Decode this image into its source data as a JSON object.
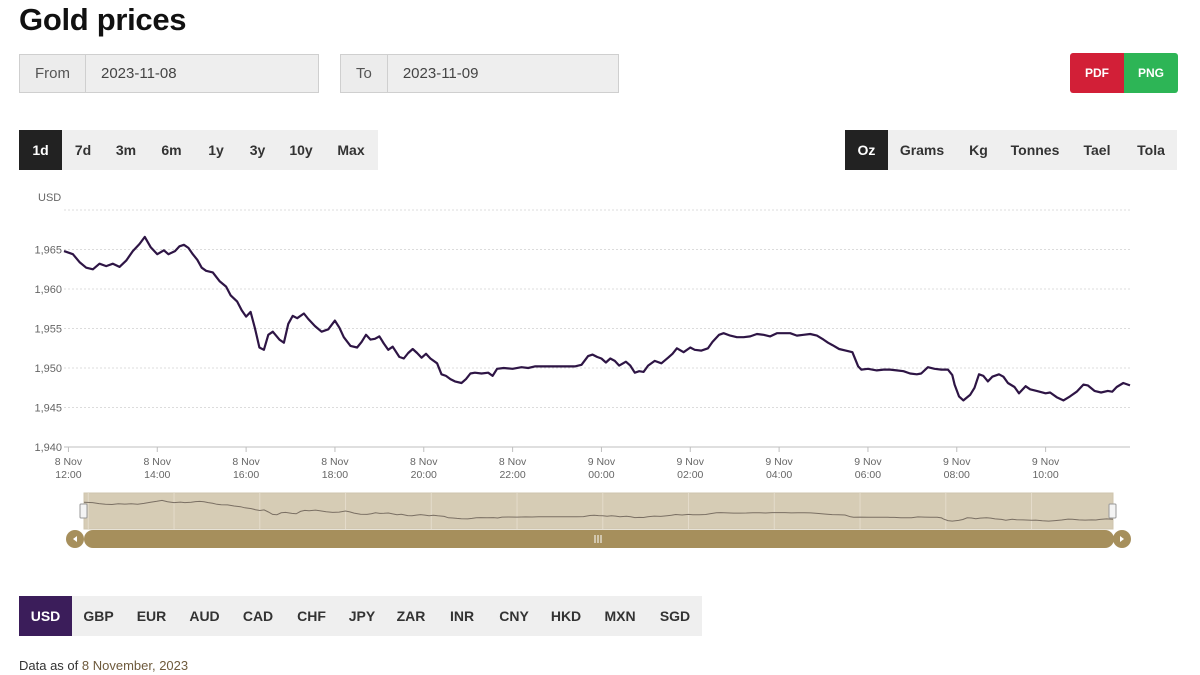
{
  "page": {
    "title": "Gold prices"
  },
  "filters": {
    "from_label": "From",
    "from_value": "2023-11-08",
    "to_label": "To",
    "to_value": "2023-11-09"
  },
  "export": {
    "pdf_label": "PDF",
    "png_label": "PNG",
    "pdf_color": "#d21f37",
    "png_color": "#2db556"
  },
  "range_options": [
    {
      "label": "1d",
      "active": true
    },
    {
      "label": "7d",
      "active": false
    },
    {
      "label": "3m",
      "active": false
    },
    {
      "label": "6m",
      "active": false
    },
    {
      "label": "1y",
      "active": false
    },
    {
      "label": "3y",
      "active": false
    },
    {
      "label": "10y",
      "active": false
    },
    {
      "label": "Max",
      "active": false
    }
  ],
  "unit_options": [
    {
      "label": "Oz",
      "active": true
    },
    {
      "label": "Grams",
      "active": false
    },
    {
      "label": "Kg",
      "active": false
    },
    {
      "label": "Tonnes",
      "active": false
    },
    {
      "label": "Tael",
      "active": false
    },
    {
      "label": "Tola",
      "active": false
    }
  ],
  "currency_options": [
    {
      "label": "USD",
      "active": true
    },
    {
      "label": "GBP",
      "active": false
    },
    {
      "label": "EUR",
      "active": false
    },
    {
      "label": "AUD",
      "active": false
    },
    {
      "label": "CAD",
      "active": false
    },
    {
      "label": "CHF",
      "active": false
    },
    {
      "label": "JPY",
      "active": false
    },
    {
      "label": "ZAR",
      "active": false
    },
    {
      "label": "INR",
      "active": false
    },
    {
      "label": "CNY",
      "active": false
    },
    {
      "label": "HKD",
      "active": false
    },
    {
      "label": "MXN",
      "active": false
    },
    {
      "label": "SGD",
      "active": false
    }
  ],
  "footer": {
    "prefix": "Data as of ",
    "date": "8 November, 2023"
  },
  "chart_data": {
    "type": "line",
    "title": "",
    "ylabel": "USD",
    "xlabel": "",
    "ylim": [
      1940,
      1970
    ],
    "yticks": [
      1940,
      1945,
      1950,
      1955,
      1960,
      1965
    ],
    "ytick_labels": [
      "1,940",
      "1,945",
      "1,950",
      "1,955",
      "1,960",
      "1,965"
    ],
    "x_unit": "hours since 8 Nov 00:00",
    "xlim": [
      11.9,
      35.9
    ],
    "xticks": [
      {
        "x": 12,
        "line1": "8 Nov",
        "line2": "12:00"
      },
      {
        "x": 14,
        "line1": "8 Nov",
        "line2": "14:00"
      },
      {
        "x": 16,
        "line1": "8 Nov",
        "line2": "16:00"
      },
      {
        "x": 18,
        "line1": "8 Nov",
        "line2": "18:00"
      },
      {
        "x": 20,
        "line1": "8 Nov",
        "line2": "20:00"
      },
      {
        "x": 22,
        "line1": "8 Nov",
        "line2": "22:00"
      },
      {
        "x": 24,
        "line1": "9 Nov",
        "line2": "00:00"
      },
      {
        "x": 26,
        "line1": "9 Nov",
        "line2": "02:00"
      },
      {
        "x": 28,
        "line1": "9 Nov",
        "line2": "04:00"
      },
      {
        "x": 30,
        "line1": "9 Nov",
        "line2": "06:00"
      },
      {
        "x": 32,
        "line1": "9 Nov",
        "line2": "08:00"
      },
      {
        "x": 34,
        "line1": "9 Nov",
        "line2": "10:00"
      }
    ],
    "grid": true,
    "line_color": "#2e1545",
    "navigator": true,
    "series": [
      {
        "name": "",
        "points": [
          [
            11.9,
            1964.8
          ],
          [
            12.1,
            1964.4
          ],
          [
            12.25,
            1963.4
          ],
          [
            12.4,
            1962.7
          ],
          [
            12.55,
            1962.5
          ],
          [
            12.7,
            1963.2
          ],
          [
            12.85,
            1962.9
          ],
          [
            13.0,
            1963.2
          ],
          [
            13.15,
            1962.8
          ],
          [
            13.3,
            1963.6
          ],
          [
            13.45,
            1964.8
          ],
          [
            13.6,
            1965.7
          ],
          [
            13.72,
            1966.6
          ],
          [
            13.85,
            1965.3
          ],
          [
            14.0,
            1964.4
          ],
          [
            14.15,
            1964.9
          ],
          [
            14.25,
            1964.4
          ],
          [
            14.4,
            1964.8
          ],
          [
            14.5,
            1965.4
          ],
          [
            14.6,
            1965.6
          ],
          [
            14.7,
            1965.2
          ],
          [
            14.8,
            1964.4
          ],
          [
            14.9,
            1963.7
          ],
          [
            15.0,
            1962.7
          ],
          [
            15.1,
            1962.3
          ],
          [
            15.25,
            1962.1
          ],
          [
            15.4,
            1961.0
          ],
          [
            15.55,
            1960.3
          ],
          [
            15.65,
            1959.2
          ],
          [
            15.8,
            1958.4
          ],
          [
            15.9,
            1957.3
          ],
          [
            16.0,
            1956.5
          ],
          [
            16.1,
            1957.1
          ],
          [
            16.2,
            1955.0
          ],
          [
            16.3,
            1952.6
          ],
          [
            16.4,
            1952.3
          ],
          [
            16.5,
            1954.2
          ],
          [
            16.6,
            1954.6
          ],
          [
            16.75,
            1953.6
          ],
          [
            16.85,
            1953.2
          ],
          [
            16.95,
            1955.6
          ],
          [
            17.05,
            1956.6
          ],
          [
            17.15,
            1956.3
          ],
          [
            17.3,
            1956.9
          ],
          [
            17.4,
            1956.2
          ],
          [
            17.55,
            1955.3
          ],
          [
            17.7,
            1954.6
          ],
          [
            17.85,
            1954.9
          ],
          [
            18.0,
            1956.0
          ],
          [
            18.1,
            1955.1
          ],
          [
            18.2,
            1953.9
          ],
          [
            18.35,
            1952.8
          ],
          [
            18.5,
            1952.6
          ],
          [
            18.6,
            1953.3
          ],
          [
            18.7,
            1954.2
          ],
          [
            18.8,
            1953.6
          ],
          [
            18.9,
            1953.7
          ],
          [
            19.0,
            1954.0
          ],
          [
            19.1,
            1953.1
          ],
          [
            19.2,
            1952.3
          ],
          [
            19.3,
            1952.7
          ],
          [
            19.45,
            1951.4
          ],
          [
            19.55,
            1951.2
          ],
          [
            19.65,
            1951.9
          ],
          [
            19.75,
            1952.4
          ],
          [
            19.85,
            1951.9
          ],
          [
            19.95,
            1951.3
          ],
          [
            20.05,
            1951.8
          ],
          [
            20.15,
            1951.2
          ],
          [
            20.3,
            1950.6
          ],
          [
            20.4,
            1949.2
          ],
          [
            20.5,
            1949.0
          ],
          [
            20.6,
            1948.6
          ],
          [
            20.7,
            1948.3
          ],
          [
            20.85,
            1948.1
          ],
          [
            20.95,
            1948.6
          ],
          [
            21.05,
            1949.3
          ],
          [
            21.15,
            1949.4
          ],
          [
            21.3,
            1949.3
          ],
          [
            21.45,
            1949.4
          ],
          [
            21.55,
            1949.0
          ],
          [
            21.65,
            1949.9
          ],
          [
            21.8,
            1950.0
          ],
          [
            22.0,
            1949.9
          ],
          [
            22.2,
            1950.1
          ],
          [
            22.35,
            1950.0
          ],
          [
            22.5,
            1950.2
          ],
          [
            22.65,
            1950.2
          ],
          [
            22.8,
            1950.2
          ],
          [
            23.0,
            1950.2
          ],
          [
            23.2,
            1950.2
          ],
          [
            23.4,
            1950.2
          ],
          [
            23.55,
            1950.4
          ],
          [
            23.7,
            1951.5
          ],
          [
            23.8,
            1951.7
          ],
          [
            23.9,
            1951.4
          ],
          [
            24.0,
            1951.2
          ],
          [
            24.1,
            1950.7
          ],
          [
            24.2,
            1951.2
          ],
          [
            24.3,
            1950.9
          ],
          [
            24.4,
            1950.3
          ],
          [
            24.55,
            1950.8
          ],
          [
            24.65,
            1950.3
          ],
          [
            24.75,
            1949.4
          ],
          [
            24.85,
            1949.6
          ],
          [
            24.95,
            1949.5
          ],
          [
            25.05,
            1950.3
          ],
          [
            25.2,
            1950.9
          ],
          [
            25.35,
            1950.6
          ],
          [
            25.5,
            1951.3
          ],
          [
            25.6,
            1951.8
          ],
          [
            25.7,
            1952.5
          ],
          [
            25.85,
            1952.0
          ],
          [
            26.0,
            1952.6
          ],
          [
            26.1,
            1952.3
          ],
          [
            26.25,
            1952.2
          ],
          [
            26.4,
            1952.5
          ],
          [
            26.5,
            1953.3
          ],
          [
            26.65,
            1954.2
          ],
          [
            26.75,
            1954.4
          ],
          [
            26.9,
            1954.1
          ],
          [
            27.05,
            1953.9
          ],
          [
            27.2,
            1953.9
          ],
          [
            27.35,
            1954.0
          ],
          [
            27.5,
            1954.3
          ],
          [
            27.65,
            1954.2
          ],
          [
            27.8,
            1954.0
          ],
          [
            27.95,
            1954.4
          ],
          [
            28.1,
            1954.4
          ],
          [
            28.25,
            1954.4
          ],
          [
            28.4,
            1954.1
          ],
          [
            28.55,
            1954.2
          ],
          [
            28.7,
            1954.3
          ],
          [
            28.85,
            1954.1
          ],
          [
            29.0,
            1953.6
          ],
          [
            29.1,
            1953.2
          ],
          [
            29.2,
            1952.9
          ],
          [
            29.35,
            1952.4
          ],
          [
            29.5,
            1952.2
          ],
          [
            29.65,
            1952.0
          ],
          [
            29.78,
            1950.2
          ],
          [
            29.85,
            1949.8
          ],
          [
            30.0,
            1949.9
          ],
          [
            30.2,
            1949.7
          ],
          [
            30.35,
            1949.8
          ],
          [
            30.5,
            1949.8
          ],
          [
            30.65,
            1949.7
          ],
          [
            30.8,
            1949.6
          ],
          [
            30.95,
            1949.3
          ],
          [
            31.1,
            1949.2
          ],
          [
            31.2,
            1949.3
          ],
          [
            31.35,
            1950.1
          ],
          [
            31.5,
            1949.9
          ],
          [
            31.65,
            1949.8
          ],
          [
            31.8,
            1949.8
          ],
          [
            31.9,
            1949.1
          ],
          [
            31.95,
            1947.9
          ],
          [
            32.05,
            1946.4
          ],
          [
            32.15,
            1945.9
          ],
          [
            32.3,
            1946.6
          ],
          [
            32.4,
            1947.5
          ],
          [
            32.5,
            1949.2
          ],
          [
            32.6,
            1949.0
          ],
          [
            32.7,
            1948.3
          ],
          [
            32.8,
            1948.9
          ],
          [
            32.95,
            1949.2
          ],
          [
            33.05,
            1948.9
          ],
          [
            33.15,
            1948.1
          ],
          [
            33.3,
            1947.6
          ],
          [
            33.4,
            1946.8
          ],
          [
            33.55,
            1947.7
          ],
          [
            33.65,
            1947.3
          ],
          [
            33.8,
            1947.1
          ],
          [
            34.0,
            1946.8
          ],
          [
            34.1,
            1946.9
          ],
          [
            34.25,
            1946.3
          ],
          [
            34.4,
            1945.9
          ],
          [
            34.55,
            1946.4
          ],
          [
            34.7,
            1947.0
          ],
          [
            34.85,
            1947.9
          ],
          [
            34.95,
            1947.8
          ],
          [
            35.1,
            1947.1
          ],
          [
            35.25,
            1946.9
          ],
          [
            35.4,
            1947.1
          ],
          [
            35.5,
            1947.0
          ],
          [
            35.6,
            1947.6
          ],
          [
            35.75,
            1948.1
          ],
          [
            35.9,
            1947.8
          ]
        ]
      }
    ]
  }
}
